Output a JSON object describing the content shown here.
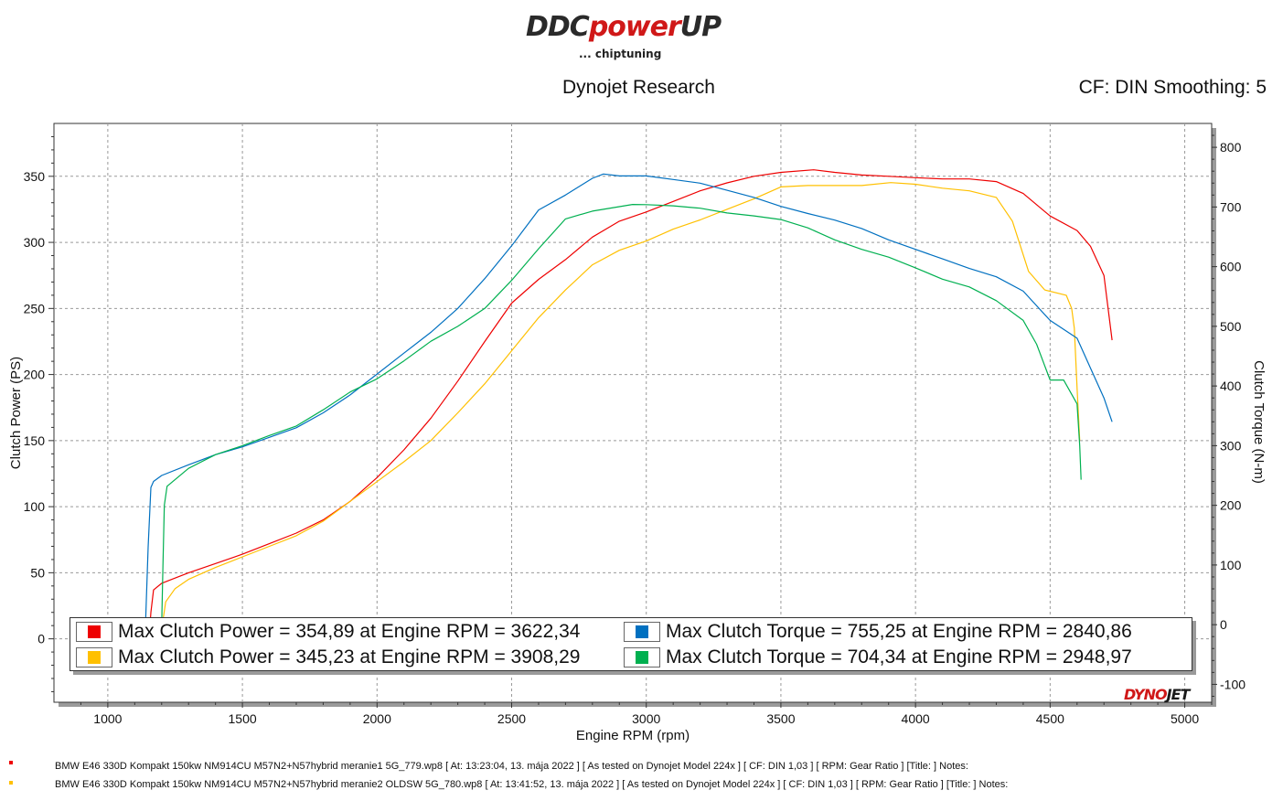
{
  "header": {
    "logo_text_a": "DDC",
    "logo_text_b": "power",
    "logo_text_c": "UP",
    "logo_sub": "... chiptuning",
    "title": "Dynojet Research",
    "cf_text": "CF: DIN Smoothing: 5"
  },
  "legend": {
    "items": [
      {
        "color": "#ee0000",
        "text": "Max Clutch Power = 354,89 at Engine RPM = 3622,34"
      },
      {
        "color": "#0070c0",
        "text": "Max Clutch Torque = 755,25 at Engine RPM = 2840,86"
      },
      {
        "color": "#ffc000",
        "text": "Max Clutch Power = 345,23 at Engine RPM = 3908,29"
      },
      {
        "color": "#00b050",
        "text": "Max Clutch Torque = 704,34 at Engine RPM = 2948,97"
      }
    ]
  },
  "brand": {
    "dyno_a": "DYNO",
    "dyno_b": "JET"
  },
  "footer": [
    {
      "color": "#ee0000",
      "text": "BMW E46 330D Kompakt 150kw NM914CU M57N2+N57hybrid meranie1  5G_779.wp8 [ At: 13:23:04, 13. mája 2022 ] [ As tested on Dynojet Model 224x ] [ CF: DIN 1,03 ] [ RPM: Gear Ratio ] [Title: ]  Notes:"
    },
    {
      "color": "#ffc000",
      "text": "BMW E46 330D Kompakt 150kw NM914CU M57N2+N57hybrid meranie2 OLDSW  5G_780.wp8 [ At: 13:41:52, 13. mája 2022 ] [ As tested on Dynojet Model 224x ] [ CF: DIN 1,03 ] [ RPM: Gear Ratio ] [Title: ]  Notes:"
    }
  ],
  "chart_data": {
    "type": "line",
    "xlabel": "Engine RPM (rpm)",
    "ylabel_left": "Clutch Power (PS)",
    "ylabel_right": "Clutch Torque (N-m)",
    "xlim": [
      800,
      5100
    ],
    "ylim_left": [
      -48,
      390
    ],
    "ylim_right": [
      -130,
      840
    ],
    "x_ticks": [
      1000,
      1500,
      2000,
      2500,
      3000,
      3500,
      4000,
      4500,
      5000
    ],
    "y_ticks_left": [
      0,
      50,
      100,
      150,
      200,
      250,
      300,
      350
    ],
    "y_ticks_right": [
      -100,
      0,
      100,
      200,
      300,
      400,
      500,
      600,
      700,
      800
    ],
    "grid": true,
    "series": [
      {
        "axis": "left",
        "color": "#ee0000",
        "points": [
          [
            1150,
            -10
          ],
          [
            1160,
            20
          ],
          [
            1170,
            37
          ],
          [
            1200,
            42
          ],
          [
            1300,
            50
          ],
          [
            1400,
            57
          ],
          [
            1500,
            64
          ],
          [
            1600,
            72
          ],
          [
            1700,
            80
          ],
          [
            1800,
            90
          ],
          [
            1900,
            104
          ],
          [
            2000,
            122
          ],
          [
            2100,
            143
          ],
          [
            2200,
            167
          ],
          [
            2300,
            195
          ],
          [
            2400,
            225
          ],
          [
            2500,
            254
          ],
          [
            2600,
            272
          ],
          [
            2700,
            287
          ],
          [
            2800,
            304
          ],
          [
            2900,
            316
          ],
          [
            3000,
            323
          ],
          [
            3100,
            331
          ],
          [
            3200,
            339
          ],
          [
            3300,
            345
          ],
          [
            3400,
            350
          ],
          [
            3500,
            353
          ],
          [
            3622,
            354.9
          ],
          [
            3700,
            353
          ],
          [
            3800,
            351
          ],
          [
            3900,
            350
          ],
          [
            4000,
            349
          ],
          [
            4100,
            348
          ],
          [
            4200,
            348
          ],
          [
            4300,
            346
          ],
          [
            4400,
            337
          ],
          [
            4500,
            320
          ],
          [
            4600,
            309
          ],
          [
            4650,
            297
          ],
          [
            4700,
            275
          ],
          [
            4730,
            226
          ]
        ]
      },
      {
        "axis": "left",
        "color": "#ffc000",
        "points": [
          [
            1195,
            -5
          ],
          [
            1205,
            14
          ],
          [
            1215,
            28
          ],
          [
            1250,
            38
          ],
          [
            1300,
            45
          ],
          [
            1400,
            54
          ],
          [
            1500,
            62
          ],
          [
            1600,
            70
          ],
          [
            1700,
            78
          ],
          [
            1800,
            89
          ],
          [
            1900,
            104
          ],
          [
            2000,
            119
          ],
          [
            2100,
            134
          ],
          [
            2200,
            150
          ],
          [
            2300,
            171
          ],
          [
            2400,
            193
          ],
          [
            2500,
            218
          ],
          [
            2600,
            243
          ],
          [
            2700,
            264
          ],
          [
            2800,
            283
          ],
          [
            2900,
            294
          ],
          [
            3000,
            301
          ],
          [
            3100,
            310
          ],
          [
            3200,
            317
          ],
          [
            3300,
            325
          ],
          [
            3400,
            333
          ],
          [
            3500,
            342
          ],
          [
            3600,
            343
          ],
          [
            3700,
            343
          ],
          [
            3800,
            343
          ],
          [
            3908,
            345.2
          ],
          [
            4000,
            344
          ],
          [
            4100,
            341
          ],
          [
            4200,
            339
          ],
          [
            4300,
            334
          ],
          [
            4360,
            316
          ],
          [
            4420,
            278
          ],
          [
            4480,
            264
          ],
          [
            4560,
            260
          ],
          [
            4580,
            250
          ],
          [
            4590,
            235
          ],
          [
            4600,
            190
          ],
          [
            4610,
            150
          ]
        ]
      },
      {
        "axis": "right",
        "color": "#0070c0",
        "points": [
          [
            1140,
            0
          ],
          [
            1150,
            130
          ],
          [
            1160,
            230
          ],
          [
            1170,
            240
          ],
          [
            1200,
            250
          ],
          [
            1300,
            268
          ],
          [
            1400,
            285
          ],
          [
            1500,
            298
          ],
          [
            1600,
            314
          ],
          [
            1700,
            330
          ],
          [
            1800,
            355
          ],
          [
            1900,
            385
          ],
          [
            2000,
            420
          ],
          [
            2100,
            455
          ],
          [
            2200,
            490
          ],
          [
            2300,
            530
          ],
          [
            2400,
            580
          ],
          [
            2500,
            635
          ],
          [
            2600,
            695
          ],
          [
            2700,
            720
          ],
          [
            2800,
            748
          ],
          [
            2841,
            755.2
          ],
          [
            2900,
            752
          ],
          [
            3000,
            752
          ],
          [
            3100,
            746
          ],
          [
            3200,
            740
          ],
          [
            3300,
            728
          ],
          [
            3400,
            716
          ],
          [
            3500,
            701
          ],
          [
            3600,
            689
          ],
          [
            3700,
            678
          ],
          [
            3800,
            664
          ],
          [
            3900,
            645
          ],
          [
            4000,
            629
          ],
          [
            4100,
            613
          ],
          [
            4200,
            597
          ],
          [
            4300,
            583
          ],
          [
            4400,
            559
          ],
          [
            4500,
            510
          ],
          [
            4600,
            480
          ],
          [
            4650,
            430
          ],
          [
            4700,
            380
          ],
          [
            4730,
            340
          ]
        ]
      },
      {
        "axis": "right",
        "color": "#00b050",
        "points": [
          [
            1200,
            0
          ],
          [
            1205,
            100
          ],
          [
            1210,
            200
          ],
          [
            1220,
            232
          ],
          [
            1300,
            262
          ],
          [
            1400,
            285
          ],
          [
            1500,
            300
          ],
          [
            1600,
            317
          ],
          [
            1700,
            333
          ],
          [
            1800,
            360
          ],
          [
            1900,
            390
          ],
          [
            2000,
            412
          ],
          [
            2100,
            442
          ],
          [
            2200,
            475
          ],
          [
            2300,
            500
          ],
          [
            2400,
            530
          ],
          [
            2500,
            577
          ],
          [
            2600,
            630
          ],
          [
            2700,
            680
          ],
          [
            2800,
            693
          ],
          [
            2949,
            704.3
          ],
          [
            3000,
            704
          ],
          [
            3100,
            702
          ],
          [
            3200,
            698
          ],
          [
            3300,
            690
          ],
          [
            3400,
            685
          ],
          [
            3500,
            679
          ],
          [
            3600,
            665
          ],
          [
            3700,
            645
          ],
          [
            3800,
            629
          ],
          [
            3900,
            616
          ],
          [
            4000,
            598
          ],
          [
            4100,
            579
          ],
          [
            4200,
            566
          ],
          [
            4300,
            543
          ],
          [
            4400,
            510
          ],
          [
            4450,
            470
          ],
          [
            4500,
            410
          ],
          [
            4550,
            410
          ],
          [
            4600,
            370
          ],
          [
            4610,
            300
          ],
          [
            4615,
            243
          ]
        ]
      }
    ]
  }
}
